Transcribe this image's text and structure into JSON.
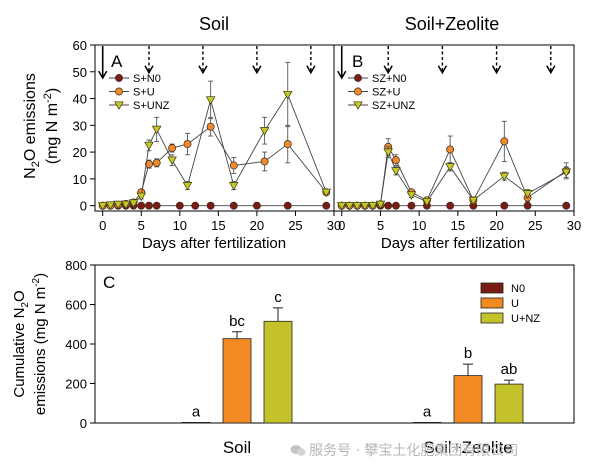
{
  "chart_data": [
    {
      "panel": "A",
      "type": "line",
      "title": "Soil",
      "xlabel": "Days after fertilization",
      "ylabel": "N2O emissions (mg N m-2)",
      "ylabel_main": "N",
      "ylabel_sub": "2",
      "ylabel_rest": "O emissions",
      "ylabel2_main": "(mg N m",
      "ylabel2_sup": "-2",
      "ylabel2_rest": ")",
      "xlim": [
        -1,
        30
      ],
      "ylim": [
        -2,
        60
      ],
      "xticks": [
        0,
        5,
        10,
        15,
        20,
        25,
        30
      ],
      "yticks": [
        0,
        10,
        20,
        30,
        40,
        50,
        60
      ],
      "fertilization_arrows": [
        {
          "day": 0,
          "style": "solid"
        },
        {
          "day": 6,
          "style": "dashed"
        },
        {
          "day": 13,
          "style": "dashed"
        },
        {
          "day": 20,
          "style": "dashed"
        },
        {
          "day": 27,
          "style": "dashed"
        }
      ],
      "legend_position": "top-left",
      "series": [
        {
          "name": "S+N0",
          "marker": "circle",
          "color": "#7b1c12",
          "x": [
            0,
            1,
            2,
            3,
            4,
            5,
            6,
            7,
            10,
            12,
            14,
            17,
            20,
            24,
            29
          ],
          "y": [
            0,
            0,
            0,
            0,
            0,
            0,
            0,
            0,
            0,
            0,
            0,
            0,
            0,
            0,
            0
          ],
          "err": []
        },
        {
          "name": "S+U",
          "marker": "circle",
          "color": "#f08a2c",
          "x": [
            0,
            1,
            2,
            3,
            4,
            5,
            6,
            7,
            9,
            11,
            14,
            17,
            21,
            24,
            29
          ],
          "y": [
            0,
            0,
            0.3,
            0.7,
            1.2,
            5,
            15.5,
            16,
            21.5,
            23,
            29.5,
            15,
            16.5,
            23,
            5
          ],
          "err": [
            0,
            0,
            0,
            0,
            0,
            1,
            1.5,
            1.5,
            1.5,
            4,
            3.5,
            3,
            3.5,
            7,
            1
          ]
        },
        {
          "name": "S+UNZ",
          "marker": "triangle-down",
          "color": "#c6c82a",
          "x": [
            0,
            1,
            2,
            3,
            4,
            5,
            6,
            7,
            9,
            11,
            14,
            17,
            21,
            24,
            29
          ],
          "y": [
            0,
            0.2,
            0.5,
            0.5,
            1,
            3.5,
            22.5,
            28.5,
            17,
            7.5,
            39.5,
            7.5,
            28,
            41.5,
            5
          ],
          "err": [
            0,
            0,
            0,
            0,
            0,
            1,
            2,
            4.5,
            2,
            1.5,
            7,
            1.5,
            5,
            12,
            1
          ]
        }
      ]
    },
    {
      "panel": "B",
      "type": "line",
      "title": "Soil+Zeolite",
      "xlabel": "Days after fertilization",
      "xlim": [
        -1,
        30
      ],
      "ylim": [
        -2,
        60
      ],
      "xticks": [
        0,
        5,
        10,
        15,
        20,
        25,
        30
      ],
      "fertilization_arrows": [
        {
          "day": 0,
          "style": "solid"
        },
        {
          "day": 6,
          "style": "dashed"
        },
        {
          "day": 13,
          "style": "dashed"
        },
        {
          "day": 20,
          "style": "dashed"
        },
        {
          "day": 27,
          "style": "dashed"
        }
      ],
      "legend_position": "top-left",
      "series": [
        {
          "name": "SZ+N0",
          "marker": "circle",
          "color": "#7b1c12",
          "x": [
            0,
            1,
            2,
            3,
            4,
            5,
            6,
            7,
            9,
            11,
            14,
            17,
            21,
            24,
            29
          ],
          "y": [
            0,
            0,
            0,
            0,
            0,
            0,
            0,
            0,
            0,
            0,
            0,
            0,
            0,
            0,
            0
          ],
          "err": []
        },
        {
          "name": "SZ+U",
          "marker": "circle",
          "color": "#f08a2c",
          "x": [
            0,
            1,
            2,
            3,
            4,
            5,
            6,
            7,
            9,
            11,
            14,
            17,
            21,
            24,
            29
          ],
          "y": [
            0,
            0,
            0,
            0,
            0,
            0.5,
            22,
            17,
            5,
            2,
            21,
            2,
            24,
            3,
            13
          ],
          "err": [
            0,
            0,
            0,
            0,
            0,
            0.5,
            3,
            2,
            1,
            0.5,
            5,
            1,
            7.5,
            1.5,
            3
          ]
        },
        {
          "name": "SZ+UNZ",
          "marker": "triangle-down",
          "color": "#c6c82a",
          "x": [
            0,
            1,
            2,
            3,
            4,
            5,
            6,
            7,
            9,
            11,
            14,
            17,
            21,
            24,
            29
          ],
          "y": [
            0,
            0,
            0,
            0,
            0,
            0.5,
            20,
            13,
            4,
            1.5,
            14.5,
            2,
            11,
            4.5,
            12.5
          ],
          "err": [
            0,
            0,
            0,
            0,
            0,
            0.5,
            2,
            1.5,
            1,
            0.5,
            1.5,
            0.5,
            1.5,
            1.5,
            2
          ]
        }
      ]
    },
    {
      "panel": "C",
      "type": "bar",
      "ylabel": "Cumulative N2O emissions (mg N m-2)",
      "ylabel_line1_pre": "Cumulative N",
      "ylabel_line1_sub": "2",
      "ylabel_line1_post": "O",
      "ylabel_line2_pre": "emissions (mg N m",
      "ylabel_line2_sup": "-2",
      "ylabel_line2_post": ")",
      "ylim": [
        0,
        800
      ],
      "yticks": [
        0,
        200,
        400,
        600,
        800
      ],
      "categories": [
        "Soil",
        "Soil+Zeolite"
      ],
      "legend_position": "top-right",
      "series": [
        {
          "name": "N0",
          "color": "#7b1a12",
          "values": [
            3,
            3
          ],
          "err": [
            0,
            0
          ]
        },
        {
          "name": "U",
          "color": "#f38a24",
          "values": [
            427,
            240
          ],
          "err": [
            35,
            58
          ]
        },
        {
          "name": "U+NZ",
          "color": "#c3c22a",
          "values": [
            515,
            197
          ],
          "err": [
            68,
            20
          ]
        }
      ],
      "significance_letters": [
        [
          "a",
          "bc",
          "c"
        ],
        [
          "a",
          "b",
          "ab"
        ]
      ]
    }
  ],
  "panel_labels": [
    "A",
    "B",
    "C"
  ],
  "watermark_text": "服务号 · 攀宝土化肥集团有限公司"
}
